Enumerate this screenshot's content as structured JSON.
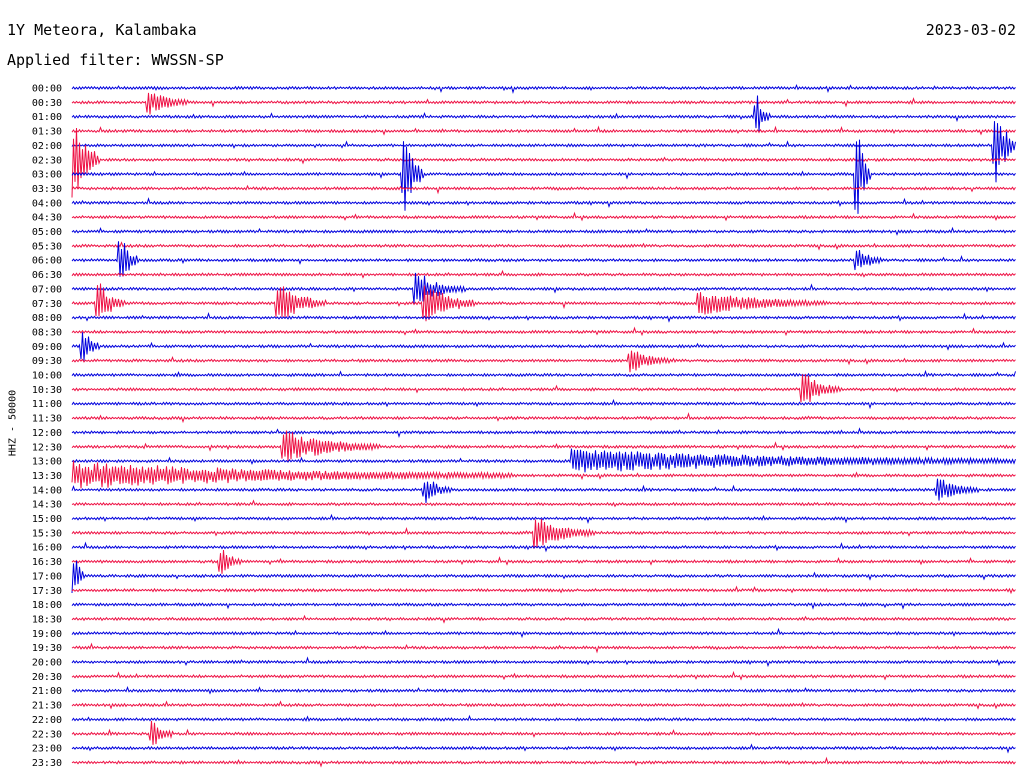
{
  "chart_data": {
    "type": "line",
    "title": "1Y Meteora, Kalambaka",
    "date": "2023-03-02",
    "subtitle": "Applied filter: WWSSN-SP",
    "ylabel": "HHZ - 50000",
    "row_labels": [
      "00:00",
      "00:30",
      "01:00",
      "01:30",
      "02:00",
      "02:30",
      "03:00",
      "03:30",
      "04:00",
      "04:30",
      "05:00",
      "05:30",
      "06:00",
      "06:30",
      "07:00",
      "07:30",
      "08:00",
      "08:30",
      "09:00",
      "09:30",
      "10:00",
      "10:30",
      "11:00",
      "11:30",
      "12:00",
      "12:30",
      "13:00",
      "13:30",
      "14:00",
      "14:30",
      "15:00",
      "15:30",
      "16:00",
      "16:30",
      "17:00",
      "17:30",
      "18:00",
      "18:30",
      "19:00",
      "19:30",
      "20:00",
      "20:30",
      "21:00",
      "21:30",
      "22:00",
      "22:30",
      "23:00",
      "23:30"
    ],
    "colors": [
      "#0000dd",
      "#ee1144"
    ],
    "trace_duration_minutes": 30,
    "events": [
      {
        "row": 1,
        "minute": 2.5,
        "duration": 1.2,
        "amplitude": 0.3
      },
      {
        "row": 2,
        "minute": 21.8,
        "duration": 0.4,
        "amplitude": 0.5
      },
      {
        "row": 4,
        "minute": 29.4,
        "duration": 0.6,
        "amplitude": 1.0
      },
      {
        "row": 5,
        "minute": 0.1,
        "duration": 0.8,
        "amplitude": 1.0
      },
      {
        "row": 6,
        "minute": 10.6,
        "duration": 0.6,
        "amplitude": 1.0
      },
      {
        "row": 6,
        "minute": 25.0,
        "duration": 0.4,
        "amplitude": 1.0
      },
      {
        "row": 12,
        "minute": 1.6,
        "duration": 0.5,
        "amplitude": 0.6
      },
      {
        "row": 12,
        "minute": 25.0,
        "duration": 0.8,
        "amplitude": 0.3
      },
      {
        "row": 14,
        "minute": 11.0,
        "duration": 1.5,
        "amplitude": 0.4
      },
      {
        "row": 15,
        "minute": 0.9,
        "duration": 0.8,
        "amplitude": 0.5
      },
      {
        "row": 15,
        "minute": 6.6,
        "duration": 1.5,
        "amplitude": 0.5
      },
      {
        "row": 15,
        "minute": 11.3,
        "duration": 1.5,
        "amplitude": 0.5
      },
      {
        "row": 15,
        "minute": 20.0,
        "duration": 4.0,
        "amplitude": 0.3
      },
      {
        "row": 18,
        "minute": 0.4,
        "duration": 0.5,
        "amplitude": 0.4
      },
      {
        "row": 19,
        "minute": 17.8,
        "duration": 1.2,
        "amplitude": 0.3
      },
      {
        "row": 21,
        "minute": 23.3,
        "duration": 1.2,
        "amplitude": 0.4
      },
      {
        "row": 25,
        "minute": 6.8,
        "duration": 3.0,
        "amplitude": 0.4
      },
      {
        "row": 26,
        "minute": 16.0,
        "duration": 14.0,
        "amplitude": 0.3
      },
      {
        "row": 27,
        "minute": 0.0,
        "duration": 14.0,
        "amplitude": 0.35
      },
      {
        "row": 28,
        "minute": 11.3,
        "duration": 0.8,
        "amplitude": 0.3
      },
      {
        "row": 28,
        "minute": 27.6,
        "duration": 1.2,
        "amplitude": 0.3
      },
      {
        "row": 31,
        "minute": 14.8,
        "duration": 1.8,
        "amplitude": 0.4
      },
      {
        "row": 33,
        "minute": 4.8,
        "duration": 0.6,
        "amplitude": 0.3
      },
      {
        "row": 34,
        "minute": 0.1,
        "duration": 0.3,
        "amplitude": 0.5
      },
      {
        "row": 45,
        "minute": 2.6,
        "duration": 0.6,
        "amplitude": 0.3
      }
    ]
  }
}
